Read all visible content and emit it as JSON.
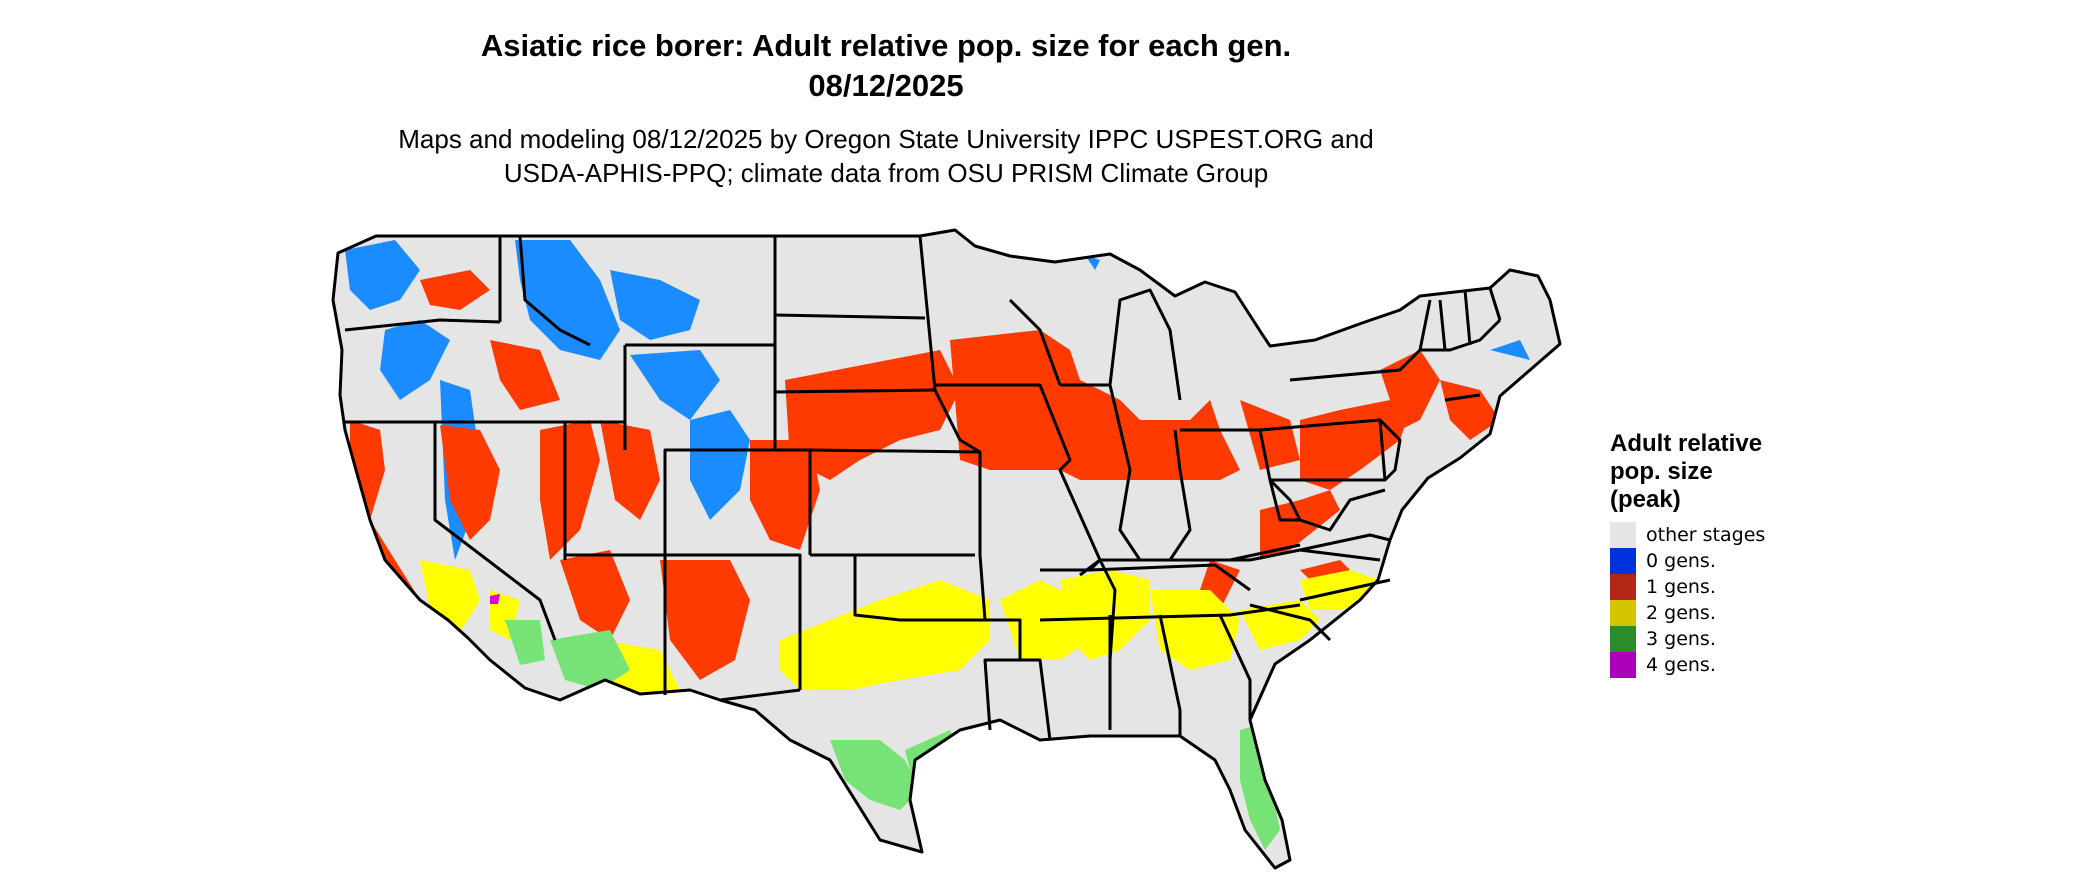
{
  "title_line1": "Asiatic rice borer: Adult relative pop. size for each gen.",
  "title_line2": "08/12/2025",
  "subtitle_line1": "Maps and modeling 08/12/2025 by Oregon State University IPPC USPEST.ORG and",
  "subtitle_line2": "USDA-APHIS-PPQ; climate data from OSU PRISM Climate Group",
  "legend": {
    "title_lines": [
      "Adult relative",
      "pop. size",
      "(peak)"
    ],
    "items": [
      {
        "label": "other stages",
        "color": "#e5e5e5"
      },
      {
        "label": "0 gens.",
        "color": "#0033dd"
      },
      {
        "label": "1 gens.",
        "color": "#b22616"
      },
      {
        "label": "2 gens.",
        "color": "#d4c400"
      },
      {
        "label": "3 gens.",
        "color": "#2a8c2a"
      },
      {
        "label": "4 gens.",
        "color": "#aa00bb"
      }
    ]
  },
  "map_colors": {
    "land": "#e5e5e5",
    "gen0": "#1a8cff",
    "gen1": "#ff3a00",
    "gen2": "#ffff00",
    "gen3": "#77e377",
    "gen4": "#dd00dd",
    "border": "#000000"
  }
}
